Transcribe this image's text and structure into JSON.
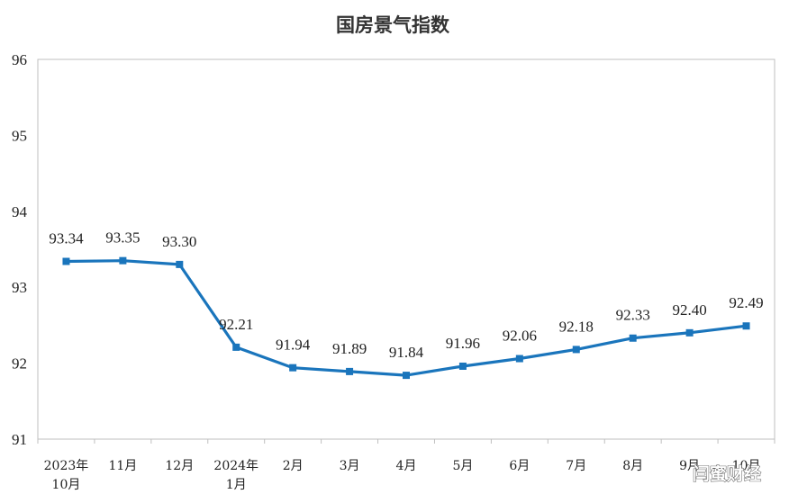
{
  "chart_data": {
    "type": "line",
    "title": "国房景气指数",
    "categories": [
      [
        "2023年",
        "10月"
      ],
      [
        "11月"
      ],
      [
        "12月"
      ],
      [
        "2024年",
        "1月"
      ],
      [
        "2月"
      ],
      [
        "3月"
      ],
      [
        "4月"
      ],
      [
        "5月"
      ],
      [
        "6月"
      ],
      [
        "7月"
      ],
      [
        "8月"
      ],
      [
        "9月"
      ],
      [
        "10月"
      ]
    ],
    "series": [
      {
        "values": [
          93.34,
          93.35,
          93.3,
          92.21,
          91.94,
          91.89,
          91.84,
          91.96,
          92.06,
          92.18,
          92.33,
          92.4,
          92.49
        ],
        "labels": [
          "93.34",
          "93.35",
          "93.30",
          "92.21",
          "91.94",
          "91.89",
          "91.84",
          "91.96",
          "92.06",
          "92.18",
          "92.33",
          "92.40",
          "92.49"
        ],
        "color": "#1a75bc"
      }
    ],
    "ylim": [
      91,
      96
    ],
    "yticks": [
      91,
      92,
      93,
      94,
      95,
      96
    ],
    "xlabel": "",
    "ylabel": "",
    "grid": false,
    "legend": "none"
  },
  "watermark": "闫蜜财经",
  "colors": {
    "line": "#1a75bc",
    "axis": "#bfbfbf",
    "text": "#222222"
  }
}
